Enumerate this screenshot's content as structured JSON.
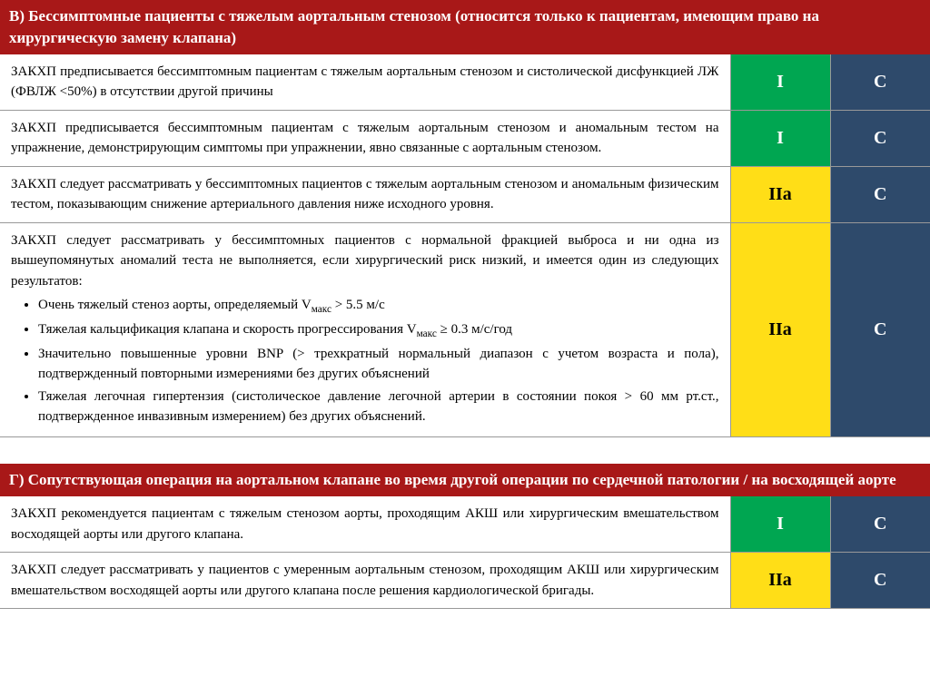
{
  "colors": {
    "headerBg": "#a81818",
    "headerText": "#ffffff",
    "green": "#00a651",
    "yellow": "#ffde17",
    "blue": "#2e4a6b",
    "border": "#999999"
  },
  "sections": [
    {
      "title": "В) Бессимптомные пациенты с тяжелым аортальным стенозом (относится только к пациентам, имеющим право на хирургическую замену клапана)",
      "rows": [
        {
          "desc": "ЗАКХП предписывается бессимптомным пациентам с тяжелым аортальным стенозом и систолической дисфункцией ЛЖ (ФВЛЖ <50%) в отсутствии другой причины",
          "class": "I",
          "classColor": "green",
          "evidence": "C"
        },
        {
          "desc": "ЗАКХП предписывается бессимптомным пациентам с тяжелым аортальным стенозом и аномальным тестом на упражнение, демонстрирующим симптомы при упражнении, явно связанные с аортальным стенозом.",
          "class": "I",
          "classColor": "green",
          "evidence": "C"
        },
        {
          "desc": "ЗАКХП следует рассматривать у бессимптомных пациентов с тяжелым аортальным стенозом и аномальным физическим тестом, показывающим снижение артериального давления ниже исходного уровня.",
          "class": "IIa",
          "classColor": "yellow",
          "evidence": "C"
        },
        {
          "desc": "ЗАКХП следует рассматривать у бессимптомных пациентов с нормальной фракцией выброса и ни одна из вышеупомянутых аномалий теста не выполняется, если хирургический риск низкий, и имеется один из следующих результатов:",
          "bullets": [
            "Очень тяжелый стеноз аорты, определяемый Vмакс > 5.5 м/с",
            "Тяжелая кальцификация клапана и скорость прогрессирования Vмакс ≥ 0.3 м/с/год",
            "Значительно повышенные уровни BNP (> трехкратный нормальный диапазон с учетом возраста и пола), подтвержденный повторными измерениями без других объяснений",
            "Тяжелая легочная гипертензия (систолическое давление легочной артерии в состоянии покоя > 60 мм рт.ст., подтвержденное инвазивным измерением) без других объяснений."
          ],
          "class": "IIa",
          "classColor": "yellow",
          "evidence": "C"
        }
      ]
    },
    {
      "title": "Г) Сопутствующая операция на аортальном  клапане во время другой операции по сердечной патологии / на восходящей аорте",
      "rows": [
        {
          "desc": "ЗАКХП рекомендуется пациентам с тяжелым стенозом аорты, проходящим АКШ или хирургическим вмешательством восходящей аорты или другого клапана.",
          "class": "I",
          "classColor": "green",
          "evidence": "C"
        },
        {
          "desc": "ЗАКХП следует рассматривать у пациентов с умеренным аортальным стенозом, проходящим АКШ или хирургическим вмешательством восходящей аорты или другого клапана после решения кардиологической бригады.",
          "class": "IIa",
          "classColor": "yellow",
          "evidence": "C"
        }
      ]
    }
  ]
}
